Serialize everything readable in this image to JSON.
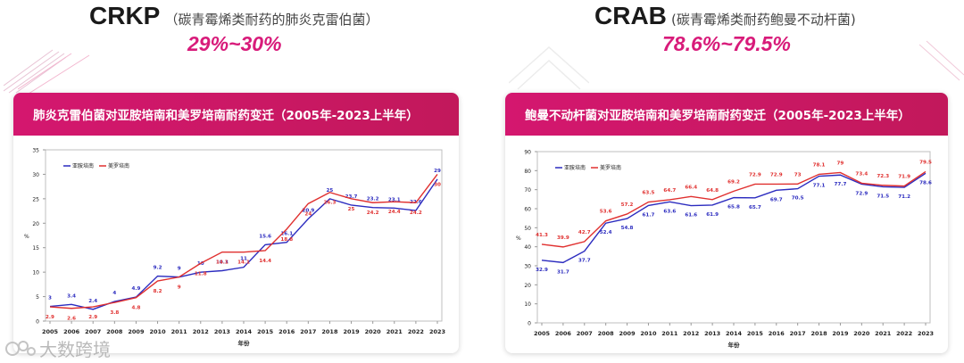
{
  "left_header": {
    "title": "CRKP",
    "subtitle": "（碳青霉烯类耐药的肺炎克雷伯菌）",
    "range": "29%~30%"
  },
  "right_header": {
    "title": "CRAB",
    "subtitle": "(碳青霉烯类耐药鲍曼不动杆菌)",
    "range": "78.6%~79.5%"
  },
  "watermark": {
    "text": "大数跨境"
  },
  "colors": {
    "accent": "#d81b7a",
    "series1": "#2b2bbf",
    "series2": "#e0302f"
  },
  "chart_data": [
    {
      "type": "line",
      "title": "肺炎克雷伯菌对亚胺培南和美罗培南耐药变迁（2005年-2023上半年）",
      "xlabel": "年份",
      "ylabel": "%",
      "ylim": [
        0,
        35
      ],
      "yticks": [
        0,
        5,
        10,
        15,
        20,
        25,
        30,
        35
      ],
      "categories": [
        "2005",
        "2006",
        "2007",
        "2008",
        "2009",
        "2010",
        "2011",
        "2012",
        "2013",
        "2014",
        "2015",
        "2016",
        "2017",
        "2018",
        "2019",
        "2020",
        "2021",
        "2022",
        "2023"
      ],
      "legend_position": "top-left",
      "series": [
        {
          "name": "亚胺培南",
          "values": [
            3,
            3.4,
            2.4,
            4,
            4.9,
            9.2,
            9,
            10,
            10.3,
            11,
            15.6,
            16.1,
            20.9,
            25,
            23.7,
            23.2,
            23.1,
            22.6,
            29
          ],
          "labels": [
            "3",
            "3.4",
            "2.4",
            "4",
            "4.9",
            "9.2",
            "9",
            "10",
            "10.3",
            "11",
            "15.6",
            "16.1",
            "20.9",
            "25",
            "23.7",
            "23.2",
            "23.1",
            "22.6",
            "29"
          ]
        },
        {
          "name": "美罗培南",
          "values": [
            2.9,
            2.6,
            2.9,
            3.8,
            4.8,
            8.2,
            9,
            11.8,
            14.1,
            14.1,
            14.4,
            18.8,
            24,
            26.3,
            25,
            24.2,
            24.4,
            24.2,
            30
          ],
          "labels": [
            "2.9",
            "2.6",
            "2.9",
            "3.8",
            "4.8",
            "8.2",
            "9",
            "11.8",
            "14.1",
            "14.1",
            "14.4",
            "18.8",
            "24",
            "26.3",
            "25",
            "24.2",
            "24.4",
            "24.2",
            "30"
          ]
        }
      ]
    },
    {
      "type": "line",
      "title": "鲍曼不动杆菌对亚胺培南和美罗培南耐药变迁（2005年-2023上半年）",
      "xlabel": "年份",
      "ylabel": "%",
      "ylim": [
        0,
        90
      ],
      "yticks": [
        0,
        10,
        20,
        30,
        40,
        50,
        60,
        70,
        80,
        90
      ],
      "categories": [
        "2005",
        "2006",
        "2007",
        "2008",
        "2009",
        "2010",
        "2011",
        "2012",
        "2013",
        "2014",
        "2015",
        "2016",
        "2017",
        "2018",
        "2019",
        "2020",
        "2021",
        "2022",
        "2023"
      ],
      "legend_position": "top-left",
      "series": [
        {
          "name": "亚胺培南",
          "values": [
            32.9,
            31.7,
            37.7,
            52.4,
            54.8,
            61.7,
            63.6,
            61.6,
            61.9,
            65.8,
            65.7,
            69.7,
            70.5,
            77.1,
            77.7,
            72.9,
            71.5,
            71.2,
            78.6
          ],
          "labels": [
            "32.9",
            "31.7",
            "37.7",
            "52.4",
            "54.8",
            "61.7",
            "63.6",
            "61.6",
            "61.9",
            "65.8",
            "65.7",
            "69.7",
            "70.5",
            "77.1",
            "77.7",
            "72.9",
            "71.5",
            "71.2",
            "78.6"
          ]
        },
        {
          "name": "美罗培南",
          "values": [
            41.3,
            39.9,
            42.7,
            53.6,
            57.2,
            63.5,
            64.7,
            66.4,
            64.8,
            69.2,
            72.9,
            72.9,
            73,
            78.1,
            79,
            73.4,
            72.3,
            71.9,
            79.5
          ],
          "labels": [
            "41.3",
            "39.9",
            "42.7",
            "53.6",
            "57.2",
            "63.5",
            "64.7",
            "66.4",
            "64.8",
            "69.2",
            "72.9",
            "72.9",
            "73",
            "78.1",
            "79",
            "73.4",
            "72.3",
            "71.9",
            "79.5"
          ]
        }
      ]
    }
  ]
}
